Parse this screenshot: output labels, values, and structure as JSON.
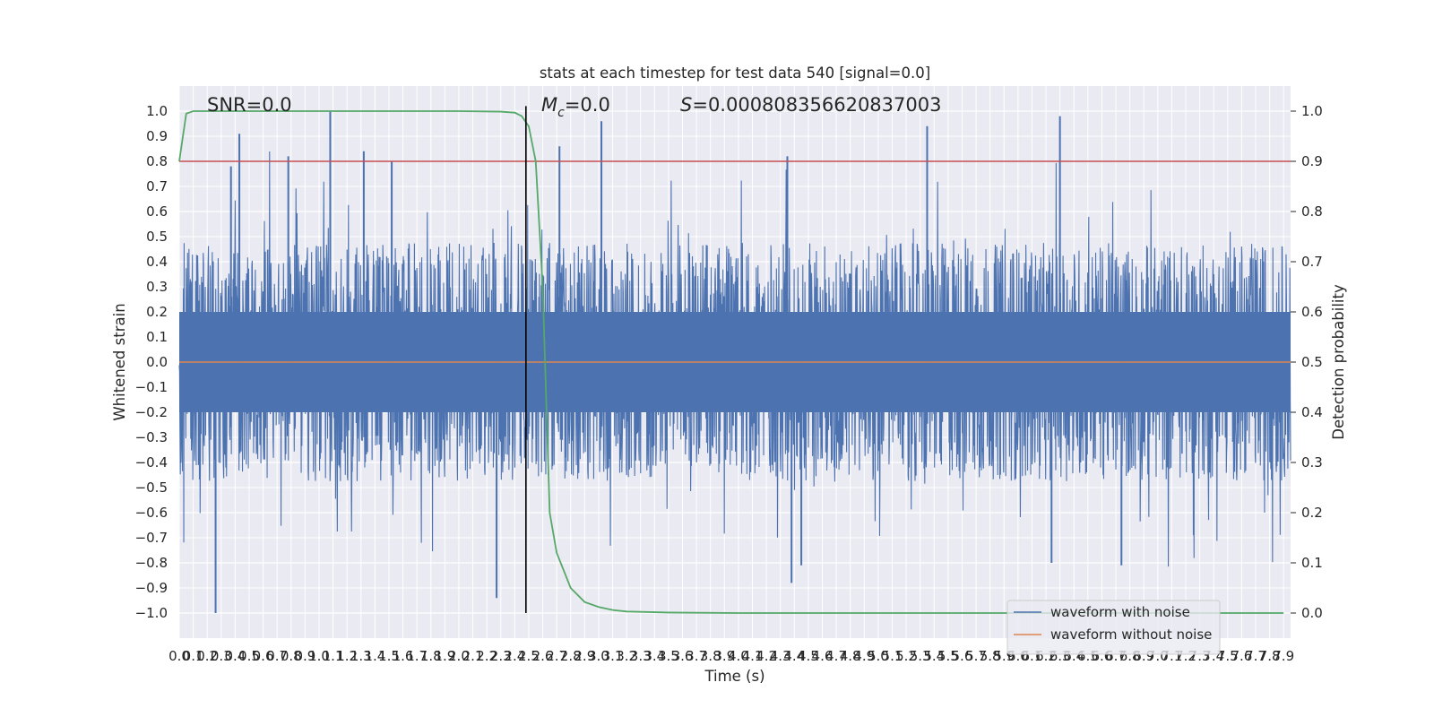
{
  "chart_data": {
    "type": "line",
    "title": "stats at each timestep for test data 540 [signal=0.0]",
    "xlabel": "Time (s)",
    "ylabel": "Whitened strain",
    "y2label": "Detection probability",
    "xlim": [
      0.0,
      7.95
    ],
    "ylim": [
      -1.1,
      1.1
    ],
    "y2lim": [
      -0.05,
      1.05
    ],
    "x_ticks": [
      0.0,
      0.1,
      0.2,
      0.3,
      0.4,
      0.5,
      0.6,
      0.7,
      0.8,
      0.9,
      1.0,
      1.1,
      1.2,
      1.3,
      1.4,
      1.5,
      1.6,
      1.7,
      1.8,
      1.9,
      2.0,
      2.1,
      2.2,
      2.3,
      2.4,
      2.5,
      2.6,
      2.7,
      2.8,
      2.9,
      3.0,
      3.1,
      3.2,
      3.3,
      3.4,
      3.5,
      3.6,
      3.7,
      3.8,
      3.9,
      4.0,
      4.1,
      4.2,
      4.3,
      4.4,
      4.5,
      4.6,
      4.7,
      4.8,
      4.9,
      5.0,
      5.1,
      5.2,
      5.3,
      5.4,
      5.5,
      5.6,
      5.7,
      5.8,
      5.9,
      6.0,
      6.1,
      6.2,
      6.3,
      6.4,
      6.5,
      6.6,
      6.7,
      6.8,
      6.9,
      7.0,
      7.1,
      7.2,
      7.3,
      7.4,
      7.5,
      7.6,
      7.7,
      7.8,
      7.9
    ],
    "y_ticks": [
      -1.0,
      -0.9,
      -0.8,
      -0.7,
      -0.6,
      -0.5,
      -0.4,
      -0.3,
      -0.2,
      -0.1,
      0.0,
      0.1,
      0.2,
      0.3,
      0.4,
      0.5,
      0.6,
      0.7,
      0.8,
      0.9,
      1.0
    ],
    "y2_ticks": [
      0.0,
      0.1,
      0.2,
      0.3,
      0.4,
      0.5,
      0.6,
      0.7,
      0.8,
      0.9,
      1.0
    ],
    "grid": true,
    "legend_position": "lower right",
    "series": [
      {
        "name": "waveform with noise",
        "axis": "left",
        "color": "#4c72b0",
        "note": "dense whitened noise, amplitude mostly within ±0.5, peaks near ±1.0",
        "peaks": [
          {
            "x": 0.43,
            "y": 0.91
          },
          {
            "x": 0.37,
            "y": 0.78
          },
          {
            "x": 0.78,
            "y": 0.82
          },
          {
            "x": 1.08,
            "y": 1.0
          },
          {
            "x": 1.32,
            "y": 0.84
          },
          {
            "x": 1.52,
            "y": 0.8
          },
          {
            "x": 2.72,
            "y": 0.86
          },
          {
            "x": 3.02,
            "y": 0.96
          },
          {
            "x": 4.35,
            "y": 0.82
          },
          {
            "x": 5.35,
            "y": 0.94
          },
          {
            "x": 6.3,
            "y": 0.98
          },
          {
            "x": 0.26,
            "y": -1.0
          },
          {
            "x": 2.27,
            "y": -0.94
          },
          {
            "x": 4.38,
            "y": -0.88
          },
          {
            "x": 4.45,
            "y": -0.81
          },
          {
            "x": 6.24,
            "y": -0.8
          },
          {
            "x": 6.74,
            "y": -0.81
          }
        ]
      },
      {
        "name": "waveform without noise",
        "axis": "left",
        "color": "#dd8452",
        "x": [
          0.0,
          7.95
        ],
        "y": [
          0.0,
          0.0
        ]
      },
      {
        "name": "detection probability",
        "axis": "right",
        "color": "#55a868",
        "x": [
          0.0,
          0.05,
          0.1,
          0.2,
          0.5,
          1.0,
          1.5,
          2.0,
          2.3,
          2.4,
          2.45,
          2.5,
          2.55,
          2.6,
          2.65,
          2.7,
          2.8,
          2.9,
          3.0,
          3.1,
          3.2,
          3.5,
          4.0,
          5.0,
          6.0,
          7.0,
          7.9
        ],
        "y": [
          0.9,
          0.995,
          1.0,
          1.0,
          1.0,
          1.0,
          1.0,
          1.0,
          0.999,
          0.997,
          0.99,
          0.97,
          0.9,
          0.65,
          0.2,
          0.12,
          0.05,
          0.022,
          0.012,
          0.006,
          0.003,
          0.001,
          0.0,
          0.0,
          0.0,
          0.0,
          0.0
        ]
      }
    ],
    "threshold": {
      "axis": "right",
      "y": 0.9,
      "color": "#c44e52"
    },
    "event_marker": {
      "x": 2.48,
      "color": "#000000"
    },
    "annotations": {
      "snr": "SNR=0.0",
      "mc_symbol": "M",
      "mc_sub": "c",
      "mc_value": "=0.0",
      "s_symbol": "S",
      "s_value": "=0.000808356620837003"
    }
  }
}
